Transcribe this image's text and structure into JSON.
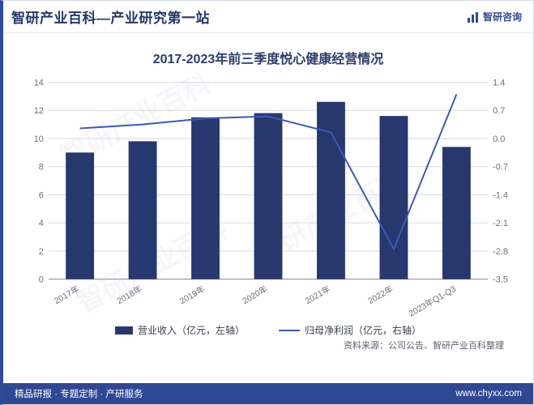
{
  "header": {
    "title": "智研产业百科—产业研究第一站",
    "brand": "智研咨询"
  },
  "chart": {
    "type": "bar+line",
    "title": "2017-2023年前三季度悦心健康经营情况",
    "categories": [
      "2017年",
      "2018年",
      "2019年",
      "2020年",
      "2021年",
      "2022年",
      "2023年Q1-Q3"
    ],
    "bar_series": {
      "label": "营业收入（亿元，左轴）",
      "values": [
        9.0,
        9.8,
        11.5,
        11.8,
        12.6,
        11.6,
        9.4
      ],
      "color": "#27386f"
    },
    "line_series": {
      "label": "归母净利润（亿元，右轴）",
      "values": [
        0.25,
        0.35,
        0.5,
        0.55,
        0.15,
        -2.75,
        1.1
      ],
      "color": "#3b59b6",
      "line_width": 2
    },
    "y_left": {
      "min": 0,
      "max": 14,
      "ticks": [
        0,
        2,
        4,
        6,
        8,
        10,
        12,
        14
      ]
    },
    "y_right": {
      "min": -3.5,
      "max": 1.4,
      "ticks": [
        -3.5,
        -2.8,
        -2.1,
        -1.4,
        -0.7,
        0.0,
        0.7,
        1.4
      ]
    },
    "grid_color": "#d5d9e2",
    "axis_color": "#8a8f9a",
    "background_color": "#ffffff",
    "bar_width_ratio": 0.45,
    "axis_fontsize": 11,
    "cat_fontsize": 10.5,
    "cat_label_rotation": -30
  },
  "legend": {
    "bar": "营业收入（亿元，左轴）",
    "line": "归母净利润（亿元，右轴）"
  },
  "source": "资料来源：公司公告、智研产业百科整理",
  "footer": {
    "left": "精品研报 · 专题定制 · 产研服务",
    "right": "www.chyxx.com"
  },
  "watermark_text": "智研产业百科",
  "colors": {
    "border_accent": "#2f4a99",
    "footer_bg": "#2f4894",
    "title_color": "#24376d"
  }
}
